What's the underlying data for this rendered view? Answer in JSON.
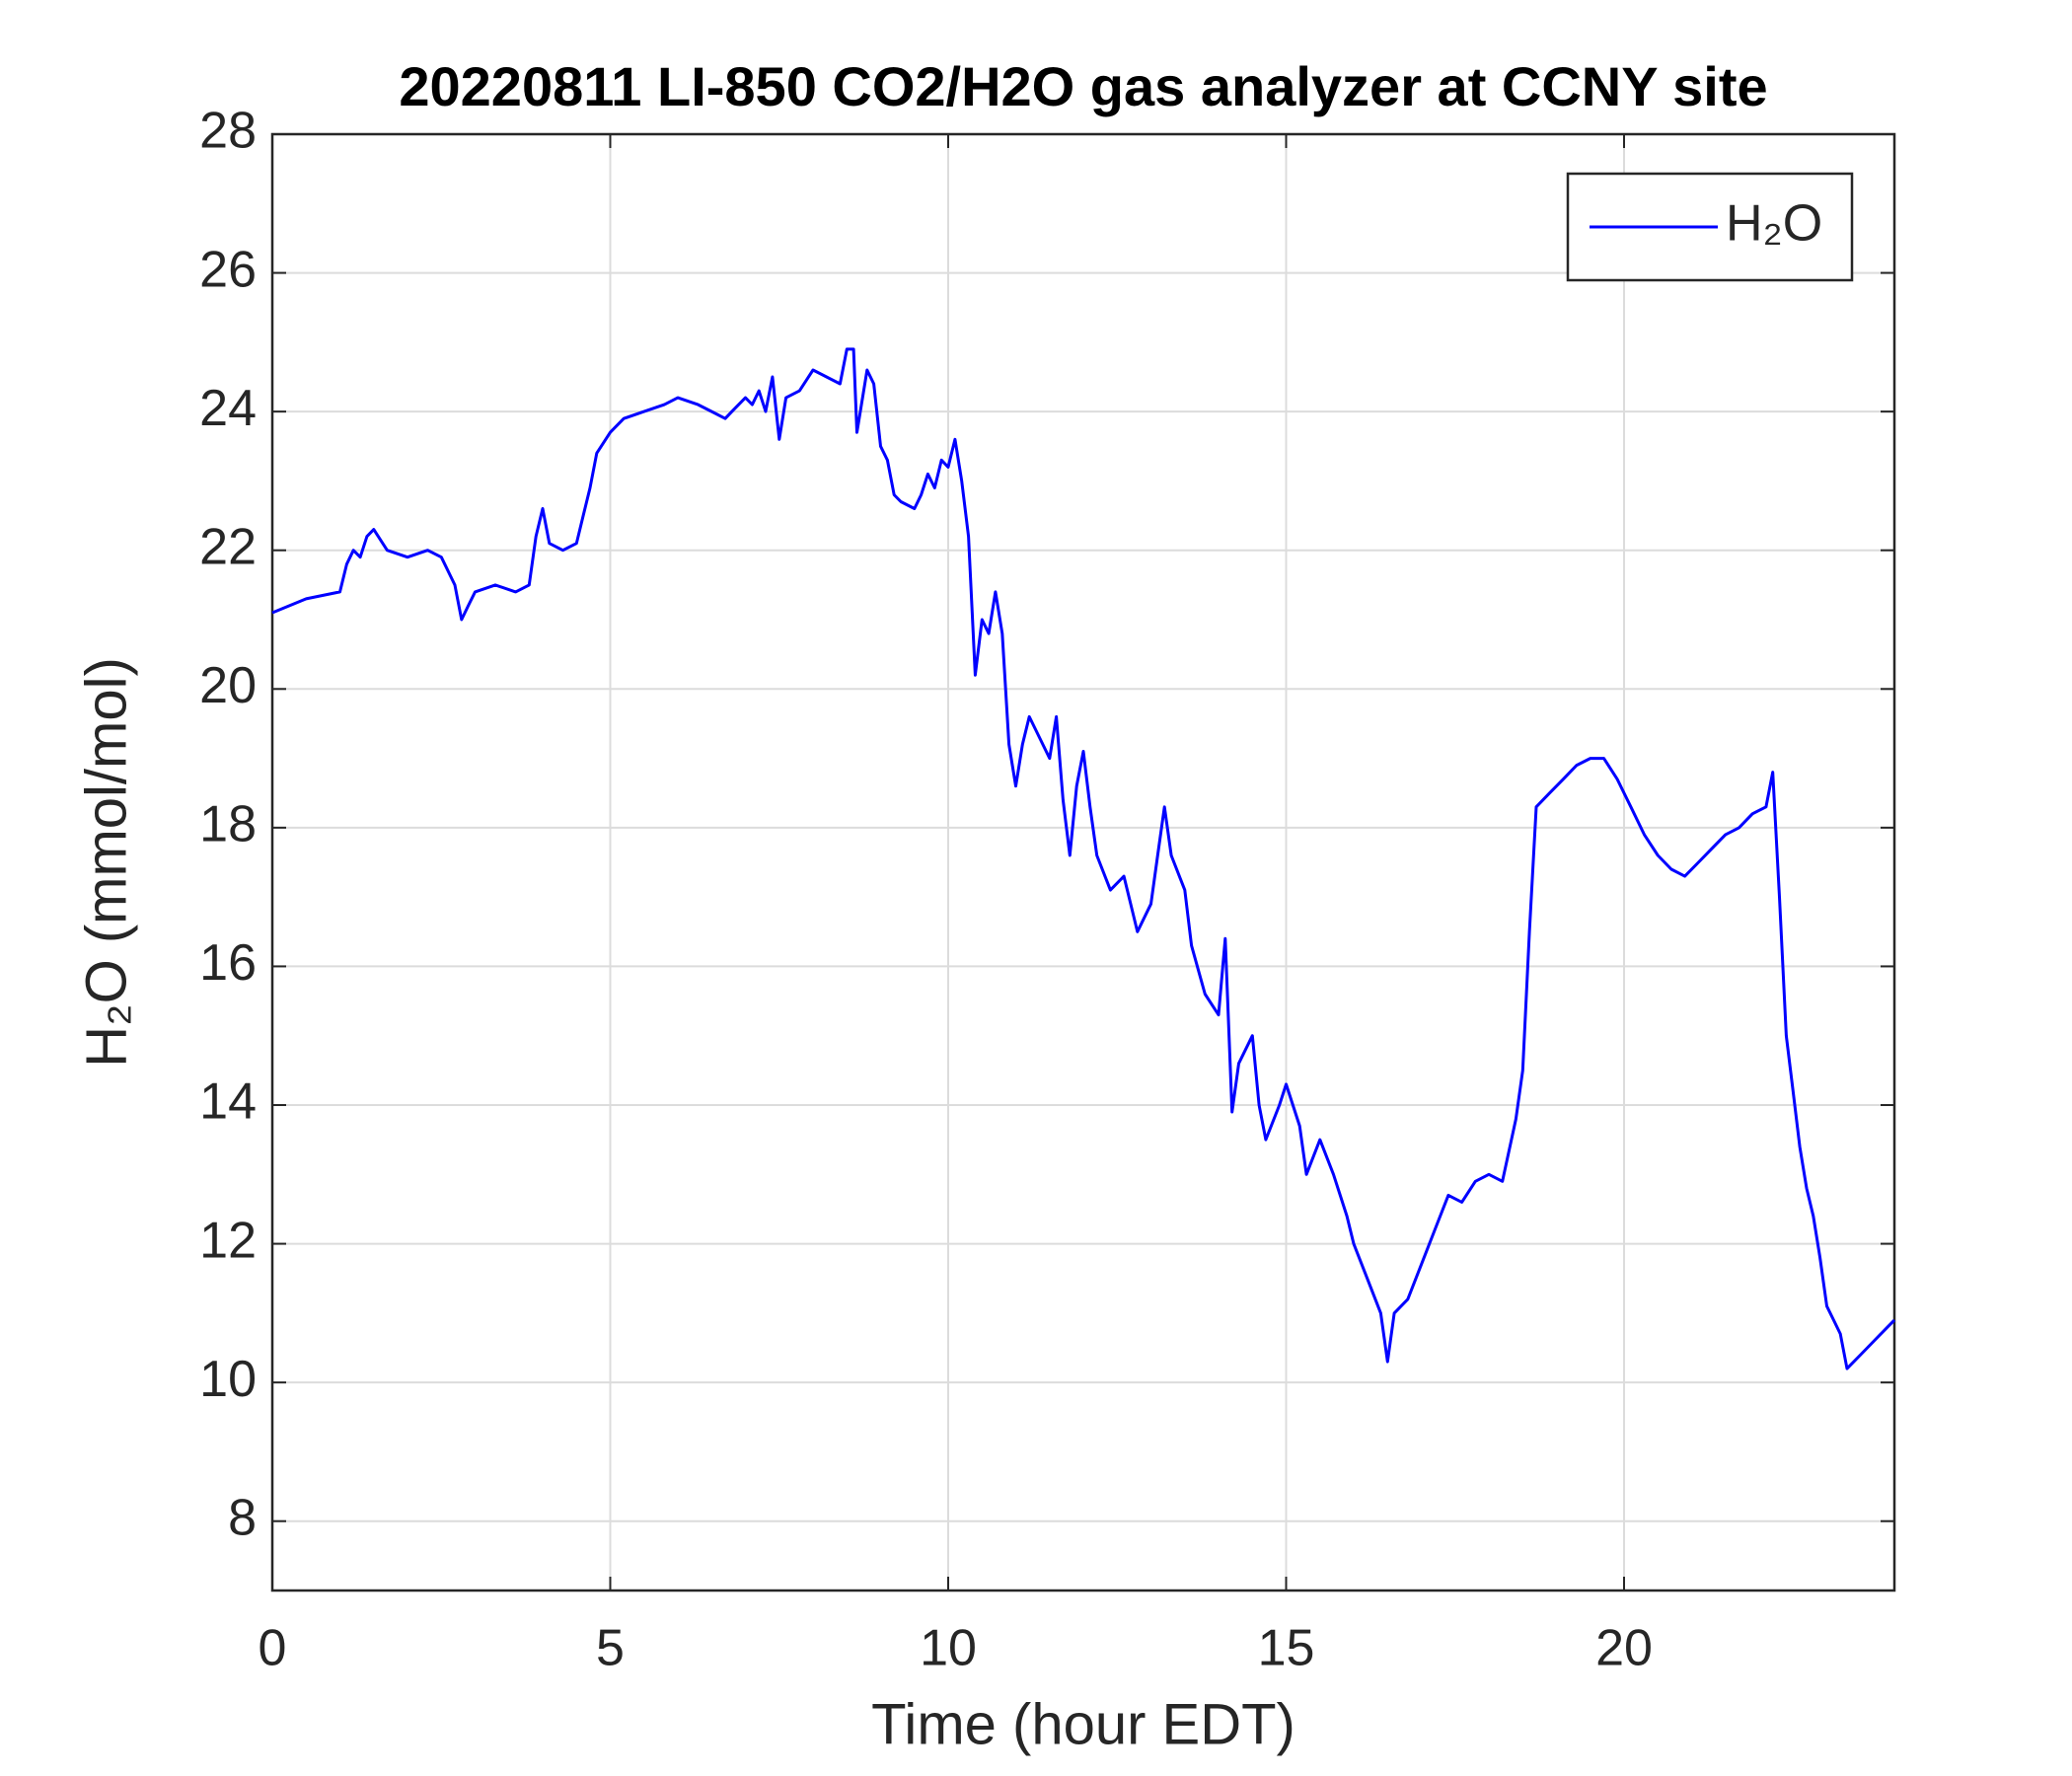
{
  "chart_data": {
    "type": "line",
    "title": "20220811 LI-850 CO2/H2O gas analyzer at CCNY site",
    "x_label": "Time (hour EDT)",
    "y_label": "H₂O (mmol/mol)",
    "xlim": [
      0,
      24
    ],
    "ylim": [
      7,
      28
    ],
    "xticks": [
      0,
      5,
      10,
      15,
      20
    ],
    "yticks": [
      8,
      10,
      12,
      14,
      16,
      18,
      20,
      22,
      24,
      26,
      28
    ],
    "grid": true,
    "legend": "upper right",
    "x": [
      0,
      0.5,
      1.0,
      1.1,
      1.2,
      1.3,
      1.4,
      1.5,
      1.7,
      2.0,
      2.3,
      2.5,
      2.7,
      2.8,
      2.9,
      3.0,
      3.3,
      3.6,
      3.8,
      3.9,
      4.0,
      4.1,
      4.3,
      4.5,
      4.6,
      4.7,
      4.8,
      5.0,
      5.2,
      5.5,
      5.8,
      6.0,
      6.3,
      6.5,
      6.7,
      6.8,
      7.0,
      7.1,
      7.2,
      7.3,
      7.4,
      7.5,
      7.6,
      7.8,
      8.0,
      8.2,
      8.4,
      8.5,
      8.6,
      8.65,
      8.8,
      8.9,
      9.0,
      9.1,
      9.2,
      9.3,
      9.5,
      9.6,
      9.7,
      9.8,
      9.9,
      10.0,
      10.1,
      10.2,
      10.3,
      10.4,
      10.5,
      10.6,
      10.7,
      10.8,
      10.9,
      11.0,
      11.1,
      11.2,
      11.3,
      11.5,
      11.6,
      11.7,
      11.8,
      11.9,
      12.0,
      12.1,
      12.2,
      12.4,
      12.6,
      12.8,
      13.0,
      13.1,
      13.2,
      13.3,
      13.5,
      13.6,
      13.8,
      14.0,
      14.1,
      14.2,
      14.3,
      14.5,
      14.6,
      14.7,
      14.9,
      15.0,
      15.2,
      15.3,
      15.5,
      15.7,
      15.9,
      16.0,
      16.2,
      16.4,
      16.5,
      16.6,
      16.8,
      17.0,
      17.2,
      17.4,
      17.6,
      17.8,
      18.0,
      18.2,
      18.4,
      18.5,
      18.6,
      18.7,
      18.9,
      19.1,
      19.3,
      19.5,
      19.7,
      19.9,
      20.1,
      20.3,
      20.5,
      20.7,
      20.9,
      21.1,
      21.3,
      21.5,
      21.7,
      21.9,
      22.1,
      22.2,
      22.3,
      22.4,
      22.5,
      22.6,
      22.7,
      22.8,
      22.9,
      23.0,
      23.1,
      23.2,
      23.3,
      23.5,
      23.7,
      23.9,
      24.0
    ],
    "series": [
      {
        "name": "H₂O",
        "color": "#0000ff",
        "values": [
          21.1,
          21.3,
          21.4,
          21.8,
          22.0,
          21.9,
          22.2,
          22.3,
          22.0,
          21.9,
          22.0,
          21.9,
          21.5,
          21.0,
          21.2,
          21.4,
          21.5,
          21.4,
          21.5,
          22.2,
          22.6,
          22.1,
          22.0,
          22.1,
          22.5,
          22.9,
          23.4,
          23.7,
          23.9,
          24.0,
          24.1,
          24.2,
          24.1,
          24.0,
          23.9,
          24.0,
          24.2,
          24.1,
          24.3,
          24.0,
          24.5,
          23.6,
          24.2,
          24.3,
          24.6,
          24.5,
          24.4,
          24.9,
          24.9,
          23.7,
          24.6,
          24.4,
          23.5,
          23.3,
          22.8,
          22.7,
          22.6,
          22.8,
          23.1,
          22.9,
          23.3,
          23.2,
          23.6,
          23.0,
          22.2,
          20.2,
          21.0,
          20.8,
          21.4,
          20.8,
          19.2,
          18.6,
          19.2,
          19.6,
          19.4,
          19.0,
          19.6,
          18.4,
          17.6,
          18.6,
          19.1,
          18.3,
          17.6,
          17.1,
          17.3,
          16.5,
          16.9,
          17.6,
          18.3,
          17.6,
          17.1,
          16.3,
          15.6,
          15.3,
          16.4,
          13.9,
          14.6,
          15.0,
          14.0,
          13.5,
          14.0,
          14.3,
          13.7,
          13.0,
          13.5,
          13.0,
          12.4,
          12.0,
          11.5,
          11.0,
          10.3,
          11.0,
          11.2,
          11.7,
          12.2,
          12.7,
          12.6,
          12.9,
          13.0,
          12.9,
          13.8,
          14.5,
          16.5,
          18.3,
          18.5,
          18.7,
          18.9,
          19.0,
          19.0,
          18.7,
          18.3,
          17.9,
          17.6,
          17.4,
          17.3,
          17.5,
          17.7,
          17.9,
          18.0,
          18.2,
          18.3,
          18.8,
          17.0,
          15.0,
          14.2,
          13.4,
          12.8,
          12.4,
          11.8,
          11.1,
          10.9,
          10.7,
          10.2,
          10.4,
          10.6,
          10.8,
          10.9
        ]
      }
    ]
  }
}
